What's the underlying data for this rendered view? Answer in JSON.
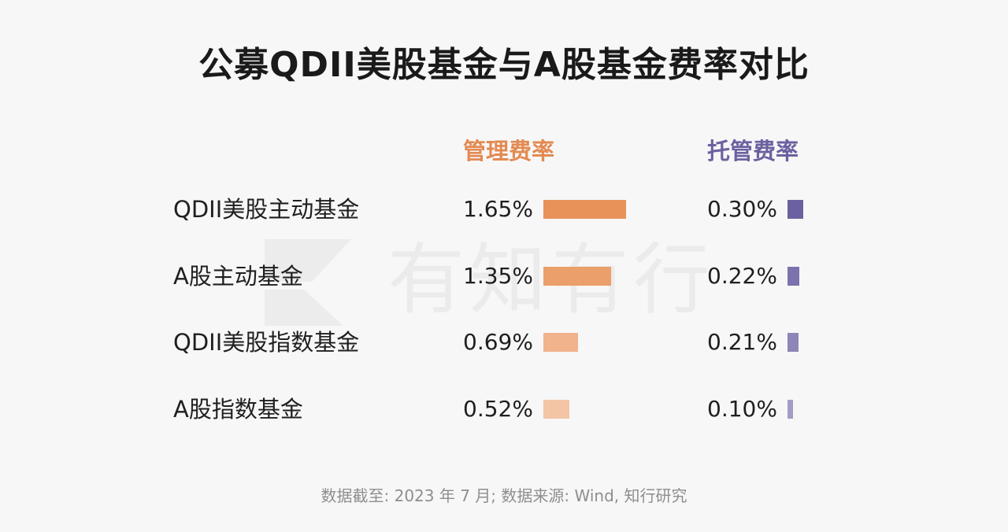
{
  "title": "公募QDII美股基金与A股基金费率对比",
  "watermark": "有知有行",
  "source": "数据截至: 2023 年 7 月;   数据来源: Wind, 知行研究",
  "chart_data": {
    "type": "bar",
    "title": "公募QDII美股基金与A股基金费率对比",
    "categories": [
      "QDII美股主动基金",
      "A股主动基金",
      "QDII美股指数基金",
      "A股指数基金"
    ],
    "series": [
      {
        "name": "管理费率",
        "values": [
          1.65,
          1.35,
          0.69,
          0.52
        ],
        "labels": [
          "1.65%",
          "1.35%",
          "0.69%",
          "0.52%"
        ],
        "colors": [
          "#e8925a",
          "#eb9f6b",
          "#f0b38c",
          "#f3c4a5"
        ]
      },
      {
        "name": "托管费率",
        "values": [
          0.3,
          0.22,
          0.21,
          0.1
        ],
        "labels": [
          "0.30%",
          "0.22%",
          "0.21%",
          "0.10%"
        ],
        "colors": [
          "#6c61a0",
          "#7c72ad",
          "#8e85b8",
          "#a39cc6"
        ]
      }
    ],
    "unit": "%",
    "orientation": "horizontal"
  }
}
